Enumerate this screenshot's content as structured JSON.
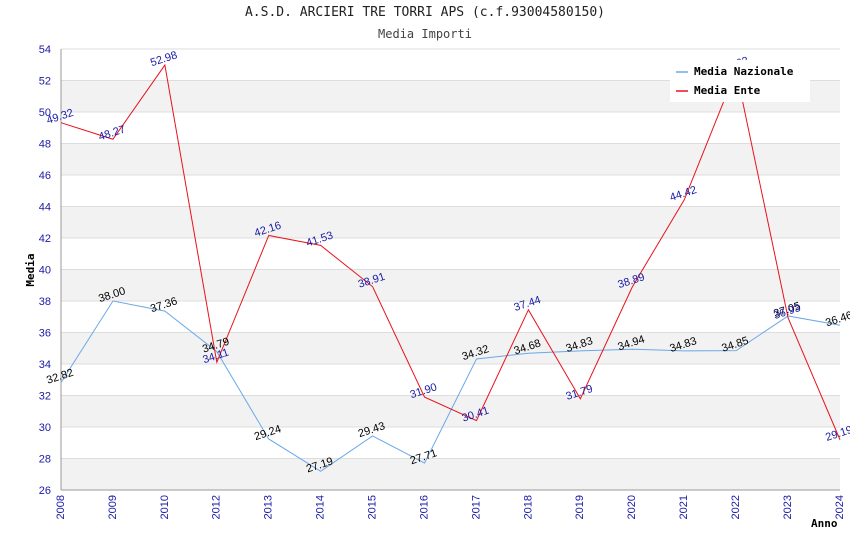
{
  "chart_data": {
    "type": "line",
    "title": "A.S.D. ARCIERI TRE TORRI APS (c.f.93004580150)",
    "subtitle": "Media Importi",
    "xlabel": "Anno",
    "ylabel": "Media",
    "ylim": [
      26,
      54
    ],
    "yticks": [
      26,
      28,
      30,
      32,
      34,
      36,
      38,
      40,
      42,
      44,
      46,
      48,
      50,
      52,
      54
    ],
    "categories": [
      "2008",
      "2009",
      "2010",
      "2012",
      "2013",
      "2014",
      "2015",
      "2016",
      "2017",
      "2018",
      "2019",
      "2020",
      "2021",
      "2022",
      "2023",
      "2024"
    ],
    "grid": true,
    "legend": "top-right",
    "series": [
      {
        "name": "Media Nazionale",
        "color": "#6aa8e8",
        "label_color": "#000000",
        "values": [
          32.82,
          38.0,
          37.36,
          34.79,
          29.24,
          27.19,
          29.43,
          27.71,
          34.32,
          34.68,
          34.83,
          34.94,
          34.83,
          34.85,
          37.05,
          36.46
        ]
      },
      {
        "name": "Media Ente",
        "color": "#e8121c",
        "label_color": "#1a1aa6",
        "values": [
          49.32,
          48.27,
          52.98,
          34.11,
          42.16,
          41.53,
          38.91,
          31.9,
          30.41,
          37.44,
          31.79,
          38.89,
          44.42,
          52.63,
          36.93,
          29.19
        ]
      }
    ]
  }
}
